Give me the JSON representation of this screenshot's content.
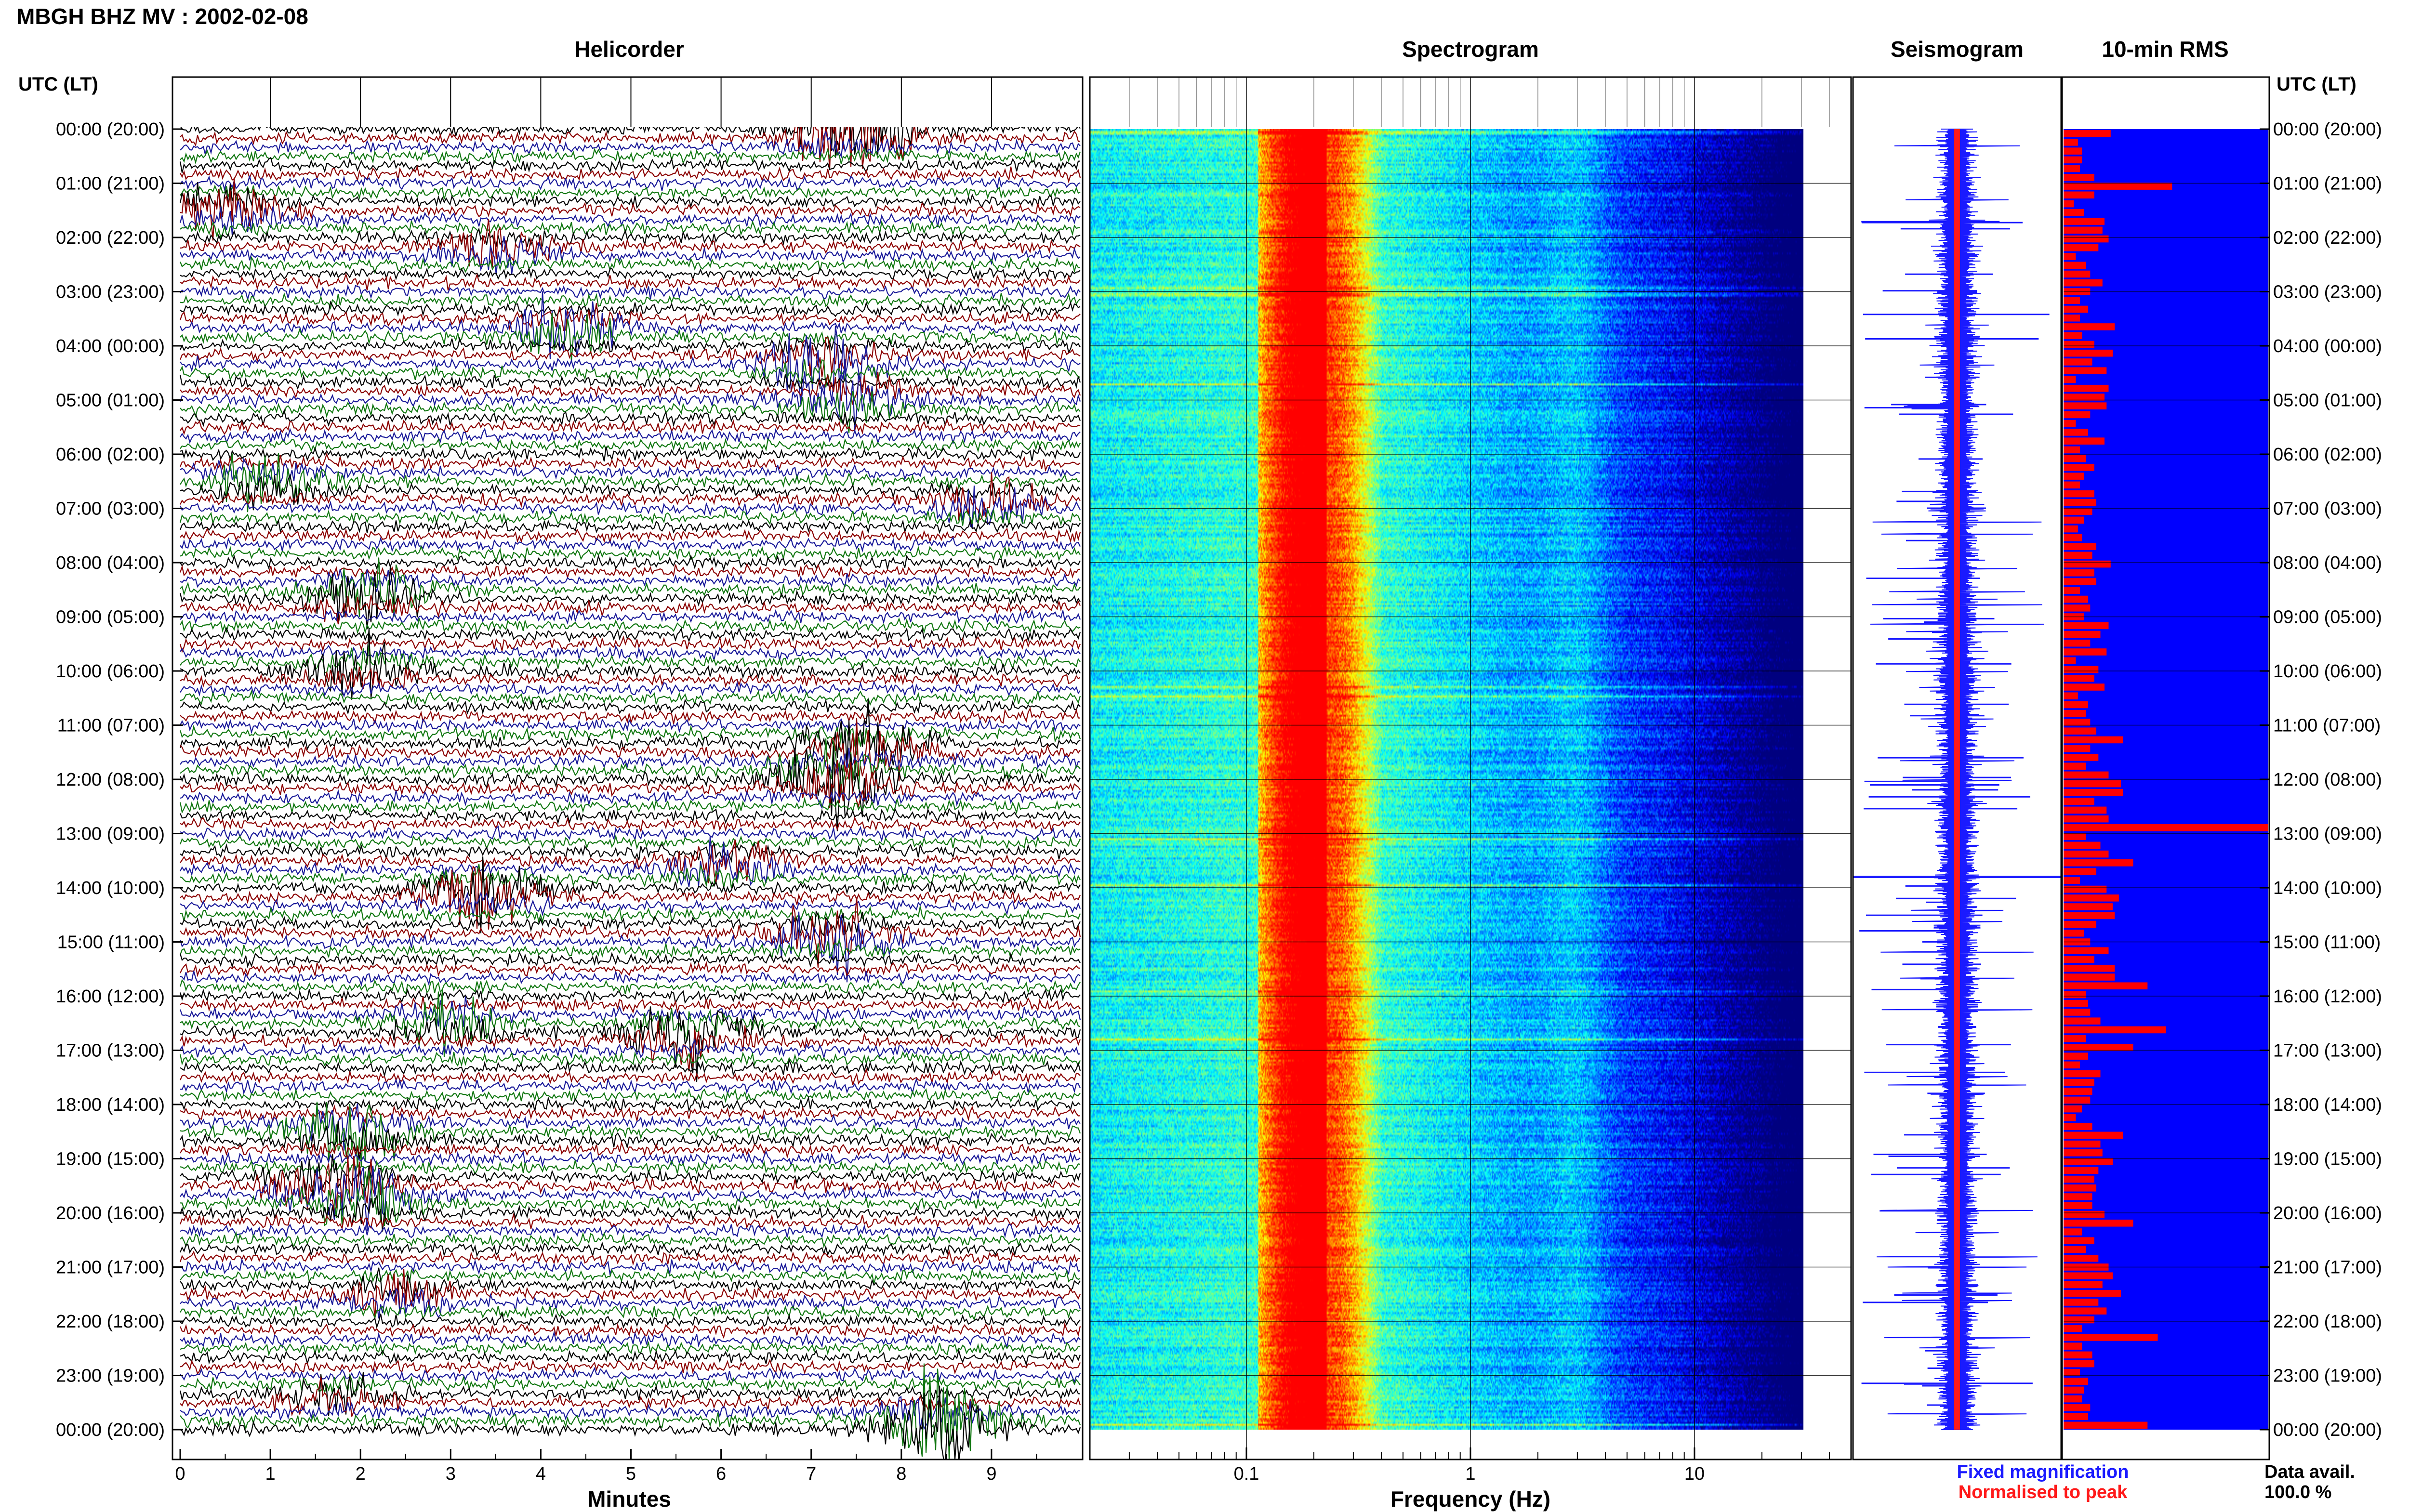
{
  "header": {
    "title": "MBGH BHZ MV : 2002-02-08",
    "time_label": "UTC (LT)"
  },
  "panels": {
    "helicorder": "Helicorder",
    "spectrogram": "Spectrogram",
    "seismogram": "Seismogram",
    "rms": "10-min RMS"
  },
  "legend": {
    "fixed": "Fixed magnification",
    "normalised": "Normalised to peak",
    "fixed_color": "#1a1aff",
    "normalised_color": "#ff1a1a"
  },
  "availability": {
    "label": "Data avail.",
    "value": "100.0 %"
  },
  "chart_data": [
    {
      "type": "line",
      "name": "helicorder",
      "title": "Helicorder",
      "xlabel": "Minutes",
      "x_ticks": [
        "0",
        "1",
        "2",
        "3",
        "4",
        "5",
        "6",
        "7",
        "8",
        "9"
      ],
      "xlim": [
        0,
        10
      ],
      "y_ticks": [
        "00:00 (20:00)",
        "01:00 (21:00)",
        "02:00 (22:00)",
        "03:00 (23:00)",
        "04:00 (00:00)",
        "05:00 (01:00)",
        "06:00 (02:00)",
        "07:00 (03:00)",
        "08:00 (04:00)",
        "09:00 (05:00)",
        "10:00 (06:00)",
        "11:00 (07:00)",
        "12:00 (08:00)",
        "13:00 (09:00)",
        "14:00 (10:00)",
        "15:00 (11:00)",
        "16:00 (12:00)",
        "17:00 (13:00)",
        "18:00 (14:00)",
        "19:00 (15:00)",
        "20:00 (16:00)",
        "21:00 (17:00)",
        "22:00 (18:00)",
        "23:00 (19:00)",
        "00:00 (20:00)"
      ],
      "trace_colors": [
        "#000000",
        "#8b0000",
        "#1a1a99",
        "#117711"
      ],
      "events": [
        {
          "hour": 0.1,
          "minute": 7.5,
          "amp": 3.0
        },
        {
          "hour": 1.5,
          "minute": 0.5,
          "amp": 1.5
        },
        {
          "hour": 2.2,
          "minute": 3.5,
          "amp": 1.4
        },
        {
          "hour": 3.7,
          "minute": 4.3,
          "amp": 1.6
        },
        {
          "hour": 4.3,
          "minute": 7.1,
          "amp": 1.8
        },
        {
          "hour": 5.0,
          "minute": 7.4,
          "amp": 1.6
        },
        {
          "hour": 6.5,
          "minute": 1.0,
          "amp": 1.3
        },
        {
          "hour": 6.9,
          "minute": 9.0,
          "amp": 1.4
        },
        {
          "hour": 8.6,
          "minute": 2.1,
          "amp": 2.0
        },
        {
          "hour": 10.0,
          "minute": 2.0,
          "amp": 1.4
        },
        {
          "hour": 11.4,
          "minute": 7.6,
          "amp": 2.5
        },
        {
          "hour": 12.0,
          "minute": 7.2,
          "amp": 2.8
        },
        {
          "hour": 13.6,
          "minute": 6.0,
          "amp": 1.5
        },
        {
          "hour": 14.1,
          "minute": 3.3,
          "amp": 2.2
        },
        {
          "hour": 14.9,
          "minute": 7.2,
          "amp": 2.0
        },
        {
          "hour": 16.7,
          "minute": 5.6,
          "amp": 2.0
        },
        {
          "hour": 16.5,
          "minute": 3.0,
          "amp": 1.3
        },
        {
          "hour": 18.5,
          "minute": 1.9,
          "amp": 2.2
        },
        {
          "hour": 19.5,
          "minute": 1.6,
          "amp": 2.0
        },
        {
          "hour": 19.8,
          "minute": 2.1,
          "amp": 1.6
        },
        {
          "hour": 21.5,
          "minute": 2.4,
          "amp": 1.3
        },
        {
          "hour": 23.4,
          "minute": 1.7,
          "amp": 1.2
        },
        {
          "hour": 23.9,
          "minute": 8.4,
          "amp": 2.8
        }
      ]
    },
    {
      "type": "heatmap",
      "name": "spectrogram",
      "title": "Spectrogram",
      "xlabel": "Frequency (Hz)",
      "x_scale": "log",
      "xlim": [
        0.02,
        50
      ],
      "x_ticks": [
        0.1,
        1,
        10
      ],
      "x_tick_labels": [
        "0.1",
        "1",
        "10"
      ],
      "data_fmax": 40,
      "peak_band_hz": [
        0.15,
        0.4
      ],
      "secondary_band_hz": [
        2,
        5
      ],
      "colormap": [
        "#00007f",
        "#0000ff",
        "#0080ff",
        "#00ffff",
        "#80ff80",
        "#ffff00",
        "#ff8000",
        "#ff0000"
      ]
    },
    {
      "type": "line",
      "name": "seismogram",
      "title": "Seismogram",
      "series": [
        {
          "name": "Fixed magnification",
          "color": "#1a1aff"
        },
        {
          "name": "Normalised to peak",
          "color": "#ff1a1a"
        }
      ]
    },
    {
      "type": "bar",
      "name": "rms",
      "title": "10-min RMS",
      "orientation": "horizontal",
      "bar_color": "#ff0000",
      "background": "#0000ff",
      "units": "relative",
      "xlim": [
        0,
        1
      ],
      "values": [
        0.23,
        0.07,
        0.09,
        0.09,
        0.08,
        0.15,
        0.53,
        0.15,
        0.05,
        0.1,
        0.2,
        0.19,
        0.22,
        0.17,
        0.06,
        0.11,
        0.13,
        0.19,
        0.13,
        0.08,
        0.12,
        0.08,
        0.25,
        0.09,
        0.15,
        0.24,
        0.14,
        0.21,
        0.06,
        0.22,
        0.2,
        0.21,
        0.13,
        0.06,
        0.12,
        0.2,
        0.08,
        0.11,
        0.15,
        0.1,
        0.08,
        0.15,
        0.16,
        0.14,
        0.1,
        0.07,
        0.09,
        0.16,
        0.14,
        0.23,
        0.15,
        0.16,
        0.08,
        0.12,
        0.13,
        0.1,
        0.22,
        0.18,
        0.13,
        0.21,
        0.06,
        0.17,
        0.15,
        0.2,
        0.07,
        0.12,
        0.11,
        0.13,
        0.16,
        0.29,
        0.13,
        0.17,
        0.11,
        0.22,
        0.28,
        0.29,
        0.15,
        0.21,
        0.22,
        1.0,
        0.11,
        0.18,
        0.22,
        0.34,
        0.16,
        0.08,
        0.21,
        0.27,
        0.24,
        0.25,
        0.16,
        0.1,
        0.13,
        0.22,
        0.15,
        0.25,
        0.25,
        0.41,
        0.11,
        0.12,
        0.13,
        0.18,
        0.5,
        0.11,
        0.34,
        0.12,
        0.08,
        0.18,
        0.15,
        0.14,
        0.13,
        0.09,
        0.06,
        0.14,
        0.29,
        0.18,
        0.19,
        0.24,
        0.17,
        0.15,
        0.16,
        0.14,
        0.14,
        0.2,
        0.34,
        0.09,
        0.15,
        0.11,
        0.17,
        0.22,
        0.24,
        0.19,
        0.28,
        0.17,
        0.21,
        0.15,
        0.09,
        0.46,
        0.09,
        0.14,
        0.15,
        0.08,
        0.12,
        0.1,
        0.09,
        0.13,
        0.12,
        0.41
      ]
    }
  ]
}
